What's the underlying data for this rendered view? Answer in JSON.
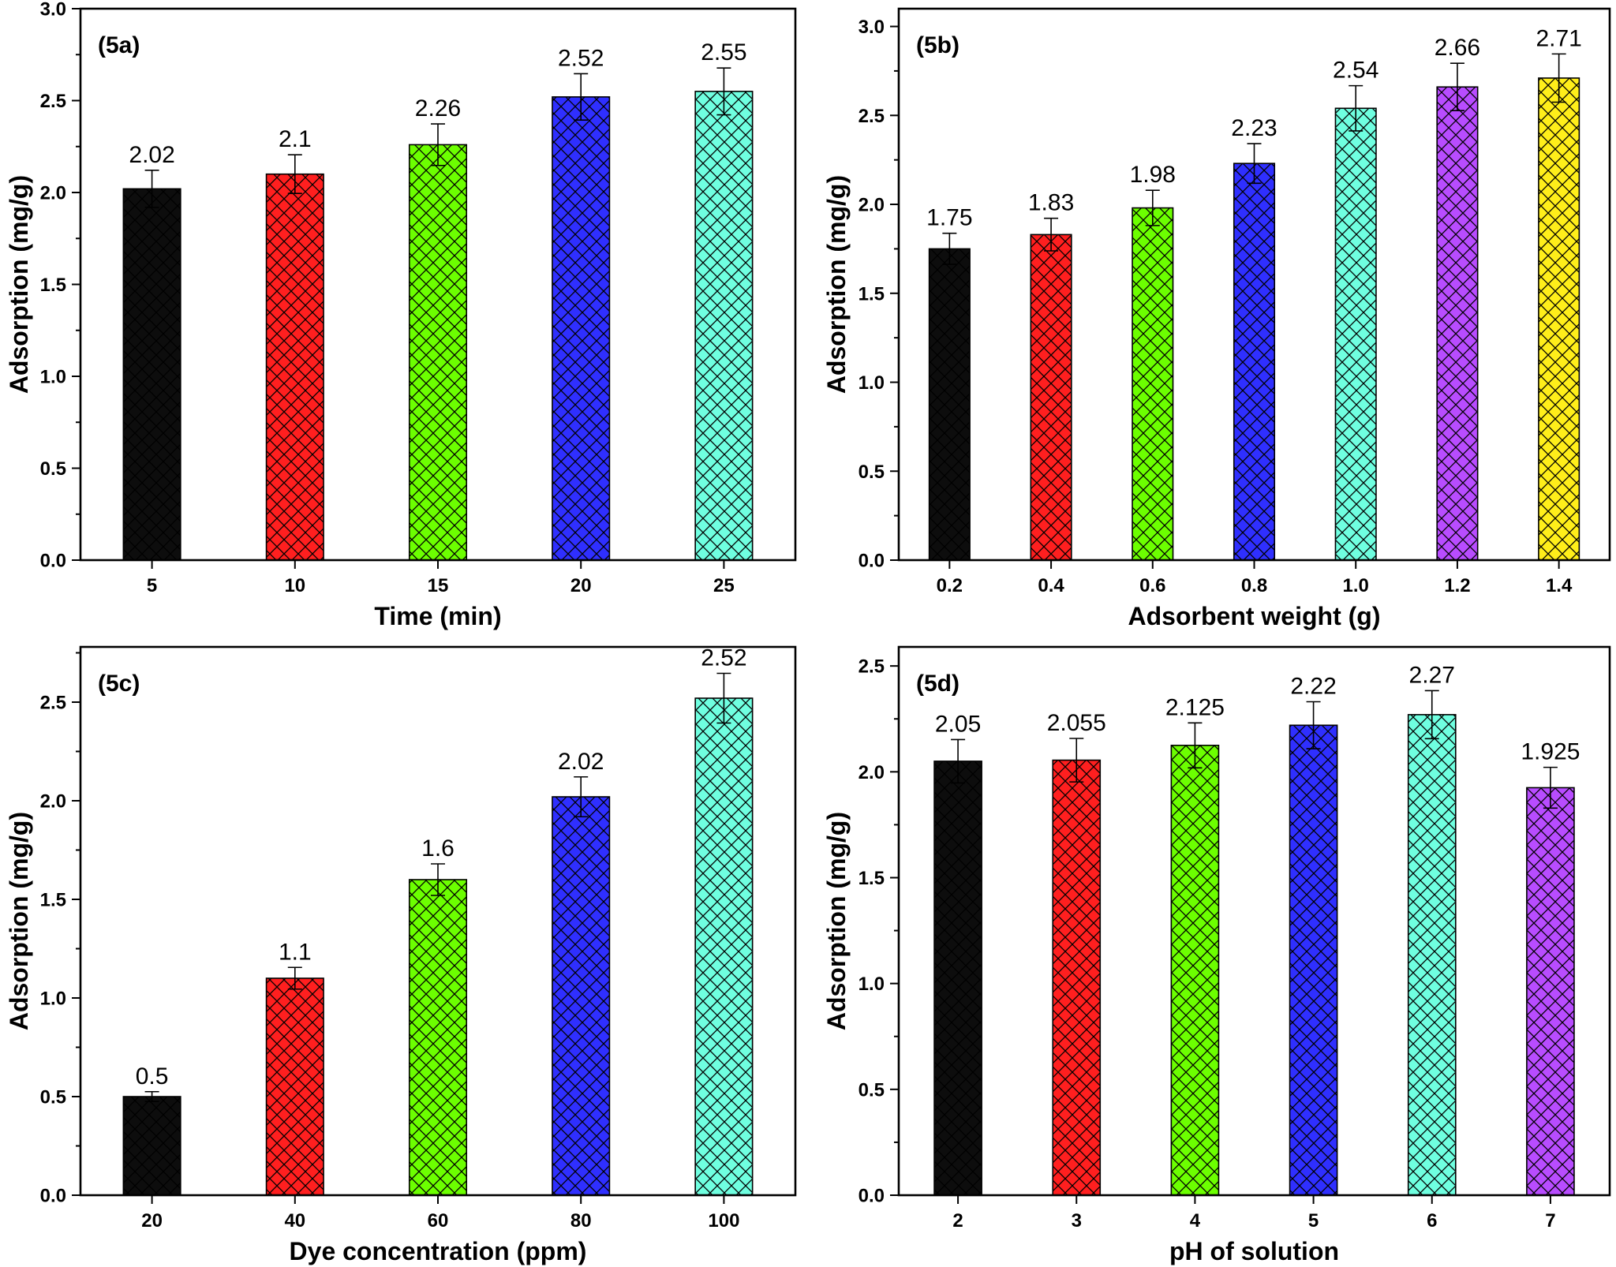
{
  "style": {
    "ink_color": "#000000",
    "hatch_color": "#000000"
  },
  "chart_data": [
    {
      "panel": "(5a)",
      "type": "bar",
      "categories": [
        "5",
        "10",
        "15",
        "20",
        "25"
      ],
      "values": [
        2.02,
        2.1,
        2.26,
        2.52,
        2.55
      ],
      "errors": [
        0.101,
        0.105,
        0.113,
        0.126,
        0.1275
      ],
      "colors": [
        "#0d0d0d",
        "#ff1f1f",
        "#6cff00",
        "#2f2fff",
        "#6fffe0"
      ],
      "xlabel": "Time (min)",
      "ylabel": "Adsorption (mg/g)",
      "ylim": [
        0,
        3.0
      ],
      "yticks": [
        "0.0",
        "0.5",
        "1.0",
        "1.5",
        "2.0",
        "2.5",
        "3.0"
      ]
    },
    {
      "panel": "(5b)",
      "type": "bar",
      "categories": [
        "0.2",
        "0.4",
        "0.6",
        "0.8",
        "1.0",
        "1.2",
        "1.4"
      ],
      "values": [
        1.75,
        1.83,
        1.98,
        2.23,
        2.54,
        2.66,
        2.71
      ],
      "errors": [
        0.0875,
        0.0915,
        0.099,
        0.1115,
        0.127,
        0.133,
        0.1355
      ],
      "colors": [
        "#0d0d0d",
        "#ff1f1f",
        "#6cff00",
        "#2f2fff",
        "#6fffe0",
        "#b84cff",
        "#ffee1a"
      ],
      "xlabel": "Adsorbent weight (g)",
      "ylabel": "Adsorption (mg/g)",
      "ylim": [
        0,
        3.1
      ],
      "yticks": [
        "0.0",
        "0.5",
        "1.0",
        "1.5",
        "2.0",
        "2.5",
        "3.0"
      ]
    },
    {
      "panel": "(5c)",
      "type": "bar",
      "categories": [
        "20",
        "40",
        "60",
        "80",
        "100"
      ],
      "values": [
        0.5,
        1.1,
        1.6,
        2.02,
        2.52
      ],
      "errors": [
        0.025,
        0.055,
        0.08,
        0.101,
        0.126
      ],
      "colors": [
        "#0d0d0d",
        "#ff1f1f",
        "#6cff00",
        "#2f2fff",
        "#6fffe0"
      ],
      "xlabel": "Dye concentration (ppm)",
      "ylabel": "Adsorption (mg/g)",
      "ylim": [
        0,
        2.78
      ],
      "yticks": [
        "0.0",
        "0.5",
        "1.0",
        "1.5",
        "2.0",
        "2.5"
      ]
    },
    {
      "panel": "(5d)",
      "type": "bar",
      "categories": [
        "2",
        "3",
        "4",
        "5",
        "6",
        "7"
      ],
      "values": [
        2.05,
        2.055,
        2.125,
        2.22,
        2.27,
        1.925
      ],
      "errors": [
        0.1025,
        0.10275,
        0.10625,
        0.111,
        0.1135,
        0.09625
      ],
      "colors": [
        "#0d0d0d",
        "#ff1f1f",
        "#6cff00",
        "#2f2fff",
        "#6fffe0",
        "#b84cff"
      ],
      "xlabel": "pH of solution",
      "ylabel": "Adsorption (mg/g)",
      "ylim": [
        0,
        2.59
      ],
      "yticks": [
        "0.0",
        "0.5",
        "1.0",
        "1.5",
        "2.0",
        "2.5"
      ]
    }
  ]
}
